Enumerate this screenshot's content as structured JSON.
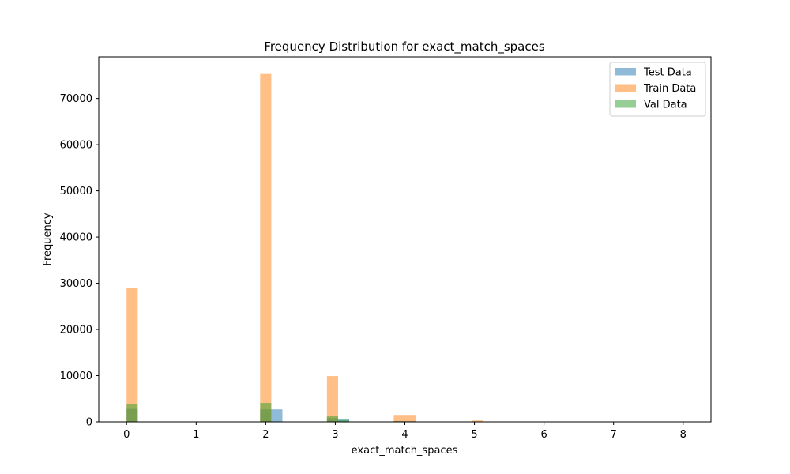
{
  "chart_data": {
    "type": "bar",
    "title": "Frequency Distribution for exact_match_spaces",
    "xlabel": "exact_match_spaces",
    "ylabel": "Frequency",
    "xlim": [
      -0.4,
      8.4
    ],
    "ylim": [
      0,
      79000
    ],
    "x_ticks": [
      0,
      1,
      2,
      3,
      4,
      5,
      6,
      7,
      8
    ],
    "y_ticks": [
      0,
      10000,
      20000,
      30000,
      40000,
      50000,
      60000,
      70000
    ],
    "grid": false,
    "legend_position": "top-right",
    "series": [
      {
        "name": "Test Data",
        "color": "#1f77b4",
        "opacity": 0.5,
        "bins": [
          {
            "x0": 0.0,
            "x1": 0.16,
            "value": 2800
          },
          {
            "x0": 1.92,
            "x1": 2.08,
            "value": 2700
          },
          {
            "x0": 2.08,
            "x1": 2.24,
            "value": 2700
          },
          {
            "x0": 2.88,
            "x1": 3.04,
            "value": 800
          },
          {
            "x0": 3.04,
            "x1": 3.2,
            "value": 500
          },
          {
            "x0": 3.84,
            "x1": 4.0,
            "value": 120
          },
          {
            "x0": 4.0,
            "x1": 4.16,
            "value": 150
          },
          {
            "x0": 4.96,
            "x1": 5.12,
            "value": 40
          }
        ]
      },
      {
        "name": "Train Data",
        "color": "#ff7f0e",
        "opacity": 0.5,
        "bins": [
          {
            "x0": 0.0,
            "x1": 0.16,
            "value": 29000
          },
          {
            "x0": 1.92,
            "x1": 2.08,
            "value": 75300
          },
          {
            "x0": 2.88,
            "x1": 3.04,
            "value": 9900
          },
          {
            "x0": 3.84,
            "x1": 4.16,
            "value": 1500
          },
          {
            "x0": 4.96,
            "x1": 5.12,
            "value": 300
          },
          {
            "x0": 5.92,
            "x1": 6.08,
            "value": 60
          },
          {
            "x0": 6.88,
            "x1": 7.04,
            "value": 20
          },
          {
            "x0": 7.84,
            "x1": 8.0,
            "value": 10
          }
        ]
      },
      {
        "name": "Val Data",
        "color": "#2ca02c",
        "opacity": 0.5,
        "bins": [
          {
            "x0": 0.0,
            "x1": 0.16,
            "value": 3900
          },
          {
            "x0": 1.92,
            "x1": 2.08,
            "value": 4100
          },
          {
            "x0": 2.88,
            "x1": 3.04,
            "value": 1200
          },
          {
            "x0": 3.04,
            "x1": 3.2,
            "value": 400
          },
          {
            "x0": 3.84,
            "x1": 4.0,
            "value": 150
          },
          {
            "x0": 4.96,
            "x1": 5.12,
            "value": 30
          }
        ]
      }
    ]
  }
}
